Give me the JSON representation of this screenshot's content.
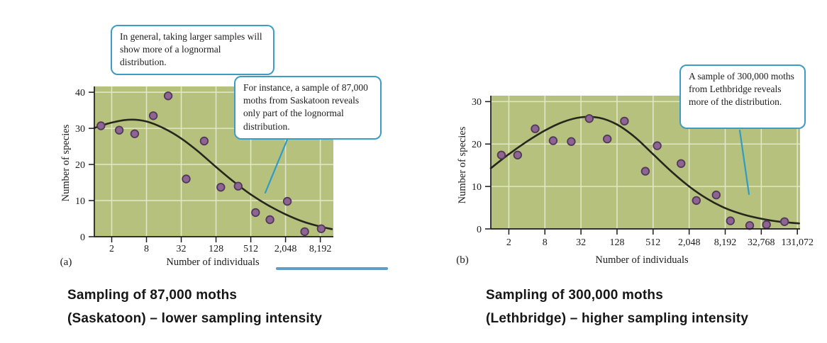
{
  "colors": {
    "plot_bg": "#b5c17d",
    "grid": "#e0e6c6",
    "curve": "#26261c",
    "point_fill": "#8f6392",
    "point_stroke": "#503a59",
    "callout_border": "#3b9dc6",
    "tail": "#2f9cc6",
    "axis": "#1a1a1a",
    "cutoff": "#5b9fcb"
  },
  "callouts": [
    {
      "text": "In general, taking larger samples will show more of a lognormal distribution."
    },
    {
      "text": "For instance, a sample of 87,000 moths from Saskatoon reveals only part of the lognormal distribution."
    },
    {
      "text": "A sample of 300,000 moths from Lethbridge reveals more of the distribution."
    }
  ],
  "captions": [
    {
      "line1": "Sampling of 87,000 moths",
      "line2": "(Saskatoon) – lower sampling intensity"
    },
    {
      "line1": "Sampling of 300,000 moths",
      "line2": "(Lethbridge) – higher sampling intensity"
    }
  ],
  "chart_data": [
    {
      "type": "scatter",
      "panel_label": "(a)",
      "title": "",
      "xlabel": "Number of individuals",
      "ylabel": "Number of species",
      "x_scale": "log2",
      "xlim_log2": [
        0,
        13.75
      ],
      "ylim": [
        0,
        41.6
      ],
      "y_ticks": [
        0,
        10,
        20,
        30,
        40
      ],
      "y_tick_labels": [
        "0",
        "10",
        "20",
        "30",
        "40"
      ],
      "x_ticks": [
        2,
        8,
        32,
        128,
        512,
        2048,
        8192
      ],
      "x_tick_labels": [
        "2",
        "8",
        "32",
        "128",
        "512",
        "2,048",
        "8,192"
      ],
      "grid": true,
      "points": [
        [
          1.3,
          30.7
        ],
        [
          2.7,
          29.5
        ],
        [
          5,
          28.5
        ],
        [
          10.5,
          33.5
        ],
        [
          19,
          39
        ],
        [
          39,
          16
        ],
        [
          80,
          26.5
        ],
        [
          155,
          13.7
        ],
        [
          310,
          14
        ],
        [
          620,
          6.7
        ],
        [
          1100,
          4.7
        ],
        [
          2200,
          9.8
        ],
        [
          4400,
          1.4
        ],
        [
          8500,
          2.2
        ]
      ],
      "curve": [
        [
          1,
          30.1
        ],
        [
          2,
          31.6
        ],
        [
          4,
          32.4
        ],
        [
          8,
          31.9
        ],
        [
          16,
          30
        ],
        [
          32,
          27.2
        ],
        [
          64,
          23.5
        ],
        [
          128,
          19.3
        ],
        [
          256,
          15.3
        ],
        [
          512,
          11.7
        ],
        [
          1024,
          8.7
        ],
        [
          2048,
          6.2
        ],
        [
          4096,
          4.2
        ],
        [
          8192,
          2.8
        ],
        [
          13000,
          2.1
        ]
      ]
    },
    {
      "type": "scatter",
      "panel_label": "(b)",
      "title": "",
      "xlabel": "Number of individuals",
      "ylabel": "Number of species",
      "x_scale": "log2",
      "xlim_log2": [
        0,
        17.15
      ],
      "ylim": [
        0,
        31.4
      ],
      "y_ticks": [
        0,
        10,
        20,
        30
      ],
      "y_tick_labels": [
        "0",
        "10",
        "20",
        "30"
      ],
      "x_ticks": [
        2,
        8,
        32,
        128,
        512,
        2048,
        8192,
        32768,
        131072
      ],
      "x_tick_labels": [
        "2",
        "8",
        "32",
        "128",
        "512",
        "2,048",
        "8,192",
        "32,768",
        "131,072"
      ],
      "grid": true,
      "points": [
        [
          1.5,
          17.4
        ],
        [
          2.8,
          17.4
        ],
        [
          5.5,
          23.6
        ],
        [
          11,
          20.8
        ],
        [
          22,
          20.6
        ],
        [
          44,
          26
        ],
        [
          88,
          21.2
        ],
        [
          170,
          25.4
        ],
        [
          380,
          13.6
        ],
        [
          600,
          19.6
        ],
        [
          1500,
          15.4
        ],
        [
          2700,
          6.7
        ],
        [
          5800,
          8
        ],
        [
          10000,
          1.9
        ],
        [
          21000,
          0.8
        ],
        [
          40000,
          1
        ],
        [
          80000,
          1.7
        ]
      ],
      "curve": [
        [
          1,
          14.3
        ],
        [
          2,
          17.6
        ],
        [
          4,
          20.6
        ],
        [
          8,
          23.2
        ],
        [
          16,
          25.2
        ],
        [
          32,
          26.3
        ],
        [
          64,
          26.2
        ],
        [
          128,
          24.6
        ],
        [
          256,
          21.6
        ],
        [
          512,
          17.6
        ],
        [
          1024,
          13.6
        ],
        [
          2048,
          10
        ],
        [
          4096,
          7.1
        ],
        [
          8192,
          4.9
        ],
        [
          16384,
          3.4
        ],
        [
          32768,
          2.4
        ],
        [
          65536,
          1.7
        ],
        [
          140000,
          1.3
        ]
      ]
    }
  ]
}
